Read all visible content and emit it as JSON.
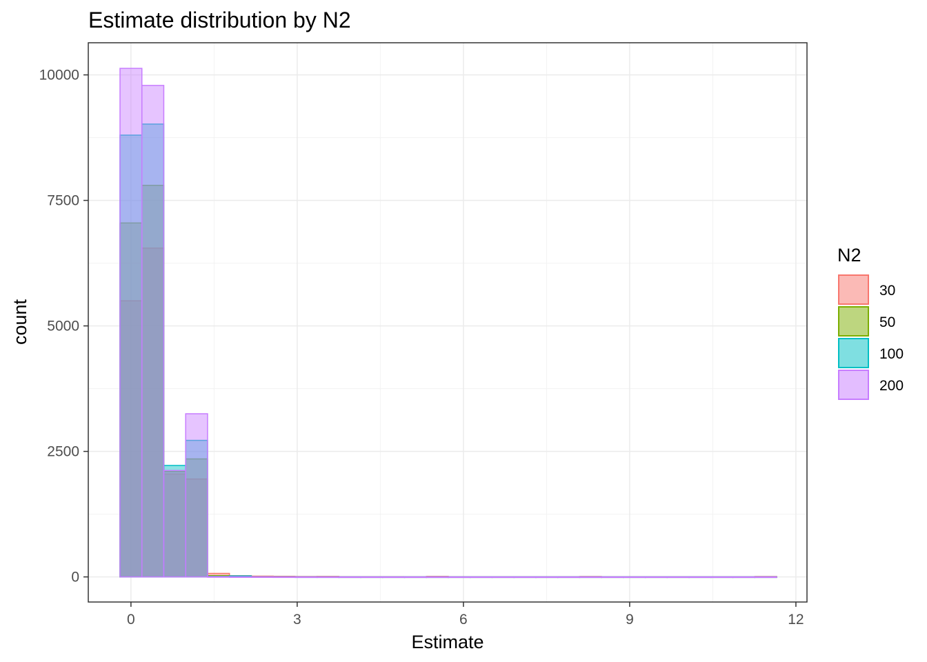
{
  "chart_data": {
    "type": "bar",
    "subtype": "overlapping histogram",
    "title": "Estimate distribution by N2",
    "xlabel": "Estimate",
    "ylabel": "count",
    "xlim": [
      -0.77,
      12.2
    ],
    "ylim": [
      -500,
      10640
    ],
    "xticks": [
      0,
      3,
      6,
      9,
      12
    ],
    "yticks": [
      0,
      2500,
      5000,
      7500,
      10000
    ],
    "grid": true,
    "legend": {
      "title": "N2",
      "position": "right"
    },
    "bin_width": 0.395,
    "bin_centers": [
      0.0,
      0.395,
      0.79,
      1.185,
      1.58,
      1.975,
      2.37,
      2.765,
      3.16,
      3.555,
      3.95,
      4.345,
      4.74,
      5.135,
      5.53,
      5.925,
      6.32,
      6.715,
      7.11,
      7.505,
      7.9,
      8.295,
      8.69,
      9.085,
      9.48,
      9.875,
      10.27,
      10.665,
      11.06,
      11.455
    ],
    "series": [
      {
        "name": "30",
        "fill": "#F8766D",
        "values": [
          5500,
          6550,
          2050,
          1950,
          70,
          25,
          15,
          12,
          8,
          10,
          5,
          5,
          5,
          3,
          10,
          3,
          2,
          2,
          2,
          2,
          3,
          8,
          2,
          2,
          2,
          2,
          2,
          2,
          2,
          8
        ]
      },
      {
        "name": "50",
        "fill": "#7CAE00",
        "values": [
          7050,
          7800,
          2100,
          2350,
          25,
          8,
          3,
          2,
          2,
          2,
          1,
          1,
          1,
          1,
          1,
          1,
          1,
          1,
          1,
          1,
          1,
          1,
          1,
          1,
          1,
          1,
          1,
          1,
          1,
          1
        ]
      },
      {
        "name": "100",
        "fill": "#00BFC4",
        "values": [
          8800,
          9020,
          2220,
          2720,
          10,
          20,
          3,
          2,
          1,
          1,
          1,
          1,
          1,
          1,
          1,
          1,
          1,
          1,
          1,
          1,
          1,
          1,
          1,
          1,
          1,
          1,
          1,
          1,
          1,
          1
        ]
      },
      {
        "name": "200",
        "fill": "#C77CFF",
        "values": [
          10130,
          9790,
          2120,
          3250,
          5,
          3,
          2,
          1,
          1,
          1,
          1,
          1,
          1,
          1,
          1,
          1,
          1,
          1,
          1,
          1,
          1,
          1,
          1,
          1,
          1,
          1,
          1,
          1,
          1,
          1
        ]
      }
    ]
  }
}
